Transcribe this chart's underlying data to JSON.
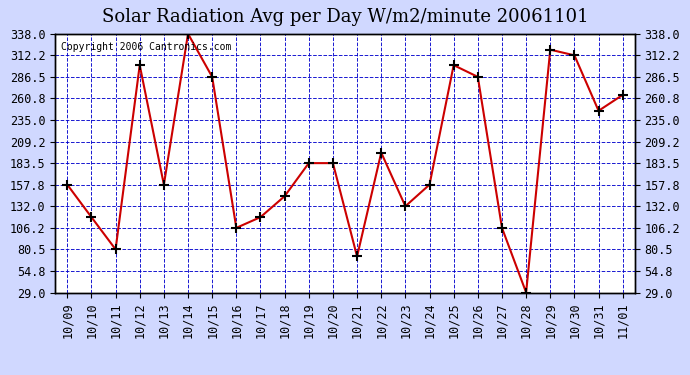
{
  "title": "Solar Radiation Avg per Day W/m2/minute 20061101",
  "copyright": "Copyright 2006 Cantronics.com",
  "x_labels": [
    "10/09",
    "10/10",
    "10/11",
    "10/12",
    "10/13",
    "10/14",
    "10/15",
    "10/16",
    "10/17",
    "10/18",
    "10/19",
    "10/20",
    "10/21",
    "10/22",
    "10/23",
    "10/24",
    "10/25",
    "10/26",
    "10/27",
    "10/28",
    "10/29",
    "10/30",
    "10/31",
    "11/01"
  ],
  "y_values": [
    157.8,
    119.0,
    80.5,
    300.5,
    157.8,
    338.0,
    286.5,
    106.2,
    119.0,
    144.0,
    183.5,
    183.5,
    72.0,
    196.0,
    132.0,
    157.8,
    300.5,
    286.5,
    106.2,
    29.0,
    319.0,
    312.2,
    246.0,
    265.0
  ],
  "ylim_min": 29.0,
  "ylim_max": 338.0,
  "yticks": [
    29.0,
    54.8,
    80.5,
    106.2,
    132.0,
    157.8,
    183.5,
    209.2,
    235.0,
    260.8,
    286.5,
    312.2,
    338.0
  ],
  "line_color": "#cc0000",
  "marker_color": "#000000",
  "bg_color": "#d0d8ff",
  "plot_bg_color": "#ffffff",
  "grid_color": "#0000cc",
  "title_fontsize": 13,
  "tick_fontsize": 8.5,
  "copyright_fontsize": 7
}
